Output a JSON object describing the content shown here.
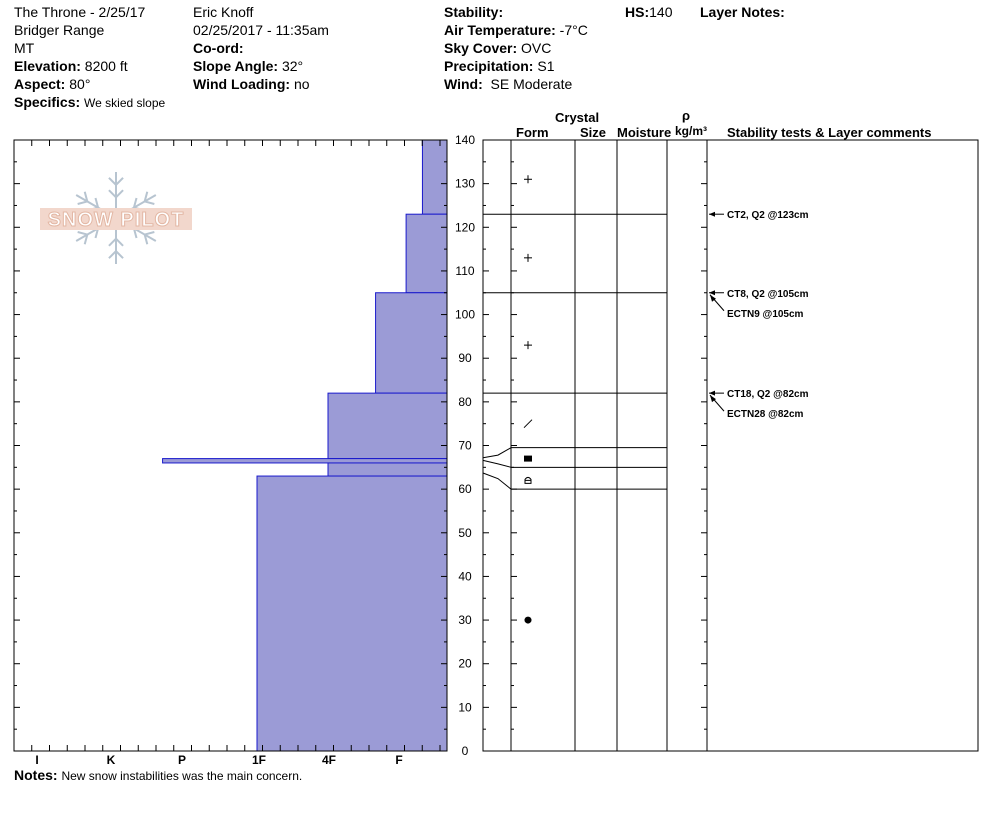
{
  "header": {
    "col1": {
      "location": "The Throne - 2/25/17",
      "range": "Bridger Range",
      "state": "MT",
      "elevation_label": "Elevation:",
      "elevation": "8200 ft",
      "aspect_label": "Aspect:",
      "aspect": "80°",
      "specifics_label": "Specifics:",
      "specifics": "We skied slope"
    },
    "col2": {
      "observer": "Eric Knoff",
      "datetime": "02/25/2017 - 11:35am",
      "coord_label": "Co-ord:",
      "slope_label": "Slope Angle:",
      "slope": "32°",
      "wind_loading_label": "Wind Loading:",
      "wind_loading": "no"
    },
    "col3": {
      "stability_label": "Stability:",
      "air_temp_label": "Air Temperature:",
      "air_temp": "-7°C",
      "sky_label": "Sky Cover:",
      "sky": "OVC",
      "precip_label": "Precipitation:",
      "precip": "S1",
      "wind_label": "Wind:",
      "wind": "SE Moderate"
    },
    "hs_label": "HS:",
    "hs": "140",
    "layer_notes_label": "Layer Notes:"
  },
  "logo_text": "SNOW PILOT",
  "columns": {
    "crystal": "Crystal",
    "form": "Form",
    "size": "Size",
    "moisture": "Moisture",
    "rho": "ρ",
    "density": "kg/m³",
    "stability": "Stability tests & Layer comments"
  },
  "notes_label": "Notes:",
  "notes": "New snow instabilities was the main concern.",
  "colors": {
    "fill": "#9b9bd6",
    "edge": "#1a1acc"
  },
  "chart_data": {
    "type": "snow-profile",
    "y_axis": {
      "min": 0,
      "max": 140,
      "ticks": [
        0,
        10,
        20,
        30,
        40,
        50,
        60,
        70,
        80,
        90,
        100,
        110,
        120,
        130,
        140
      ]
    },
    "hardness_scale": [
      "I",
      "K",
      "P",
      "1F",
      "4F",
      "F"
    ],
    "hardness_note": "scale drawn increasing from left to right as printed",
    "hardness_profile": [
      {
        "bottom": 123,
        "top": 140,
        "hardness": 0.33
      },
      {
        "bottom": 105,
        "top": 123,
        "hardness": 0.1
      },
      {
        "bottom": 82,
        "top": 105,
        "hardness": -0.33
      },
      {
        "bottom": 67,
        "top": 82,
        "hardness": -1.0
      },
      {
        "bottom": 66,
        "top": 67,
        "hardness": -3.33
      },
      {
        "bottom": 63,
        "top": 66,
        "hardness": -1.0
      },
      {
        "bottom": 0,
        "top": 63,
        "hardness": -2.0
      }
    ],
    "layer_lines": [
      140,
      123,
      105,
      82,
      69.5,
      65,
      60
    ],
    "crystal_forms": [
      {
        "height": 131,
        "symbol": "new-snow-plus"
      },
      {
        "height": 113,
        "symbol": "new-snow-plus"
      },
      {
        "height": 93,
        "symbol": "new-snow-plus"
      },
      {
        "height": 75,
        "symbol": "decomposing-slash"
      },
      {
        "height": 67,
        "symbol": "faceted-square"
      },
      {
        "height": 62,
        "symbol": "depth-hoar-arch"
      },
      {
        "height": 30,
        "symbol": "rounded-dot"
      }
    ],
    "stability_tests": [
      {
        "height": 123,
        "text": "CT2, Q2 @123cm",
        "arrow": true
      },
      {
        "height": 105,
        "text": "CT8, Q2 @105cm",
        "arrow": true
      },
      {
        "height": 105,
        "text": "ECTN9 @105cm",
        "arrow": true,
        "offset": 1
      },
      {
        "height": 82,
        "text": "CT18, Q2 @82cm",
        "arrow": true
      },
      {
        "height": 82,
        "text": "ECTN28 @82cm",
        "arrow": true,
        "offset": 1
      }
    ]
  }
}
